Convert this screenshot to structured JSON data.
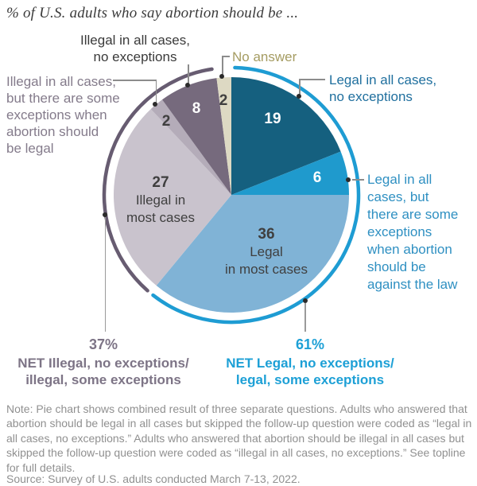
{
  "title": "% of U.S. adults who say abortion should be ...",
  "chart_data": {
    "type": "pie",
    "title": "% of U.S. adults who say abortion should be ...",
    "start_angle_deg": 0,
    "direction": "clockwise",
    "segments": [
      {
        "label": "Legal in all cases, no exceptions",
        "value": 19,
        "color": "#15607f",
        "value_text_color": "#ffffff"
      },
      {
        "label": "Legal in all cases, but there are some exceptions when abortion should be against the law",
        "value": 6,
        "color": "#1f9acd",
        "value_text_color": "#ffffff"
      },
      {
        "label": "Legal in most cases",
        "value": 36,
        "color": "#80b3d6",
        "in_label": "Legal\nin most cases",
        "value_text_color": "#3f3f3f"
      },
      {
        "label": "Illegal in most cases",
        "value": 27,
        "color": "#c9c3cd",
        "in_label": "Illegal in\nmost cases",
        "value_text_color": "#3f3f3f"
      },
      {
        "label": "Illegal in all cases, but there are some exceptions when abortion should be legal",
        "value": 2,
        "color": "#b4acb9",
        "value_text_color": "#2f2f2f"
      },
      {
        "label": "Illegal in all cases, no exceptions",
        "value": 8,
        "color": "#766a7d",
        "value_text_color": "#ffffff"
      },
      {
        "label": "No answer",
        "value": 2,
        "color": "#ddd9c3",
        "value_text_color": "#2f2f2f"
      }
    ],
    "nets": [
      {
        "label": "NET Legal, no exceptions/ legal, some exceptions",
        "value": 61,
        "value_label": "61%",
        "color": "#1e9cd3"
      },
      {
        "label": "NET Illegal, no exceptions/ illegal, some exceptions",
        "value": 37,
        "value_label": "37%",
        "color": "#675c71"
      }
    ]
  },
  "callouts": {
    "illegal_all": "Illegal in all cases,\nno exceptions",
    "no_answer": "No answer",
    "legal_all": "Legal in all cases,\nno exceptions",
    "legal_some": "Legal in all\ncases, but\nthere are some\nexceptions\nwhen abortion\nshould be\nagainst the law",
    "illegal_some": "Illegal in all cases,\nbut there are some\nexceptions when\nabortion should\nbe legal"
  },
  "net_left": {
    "pct": "37%",
    "line1": "NET Illegal, no exceptions/",
    "line2": "illegal, some exceptions"
  },
  "net_right": {
    "pct": "61%",
    "line1": "NET Legal, no exceptions/",
    "line2": "legal, some exceptions"
  },
  "footer": {
    "note": "Note: Pie chart shows combined result of three separate questions. Adults who answered that abortion should be legal in all cases but skipped the follow-up question were coded as “legal in all cases, no exceptions.” Adults who answered that abortion should be illegal in all cases but skipped the follow-up question were coded as “illegal in all cases, no exceptions.” See topline for full details.",
    "source": "Source: Survey of U.S. adults conducted March 7-13, 2022."
  }
}
